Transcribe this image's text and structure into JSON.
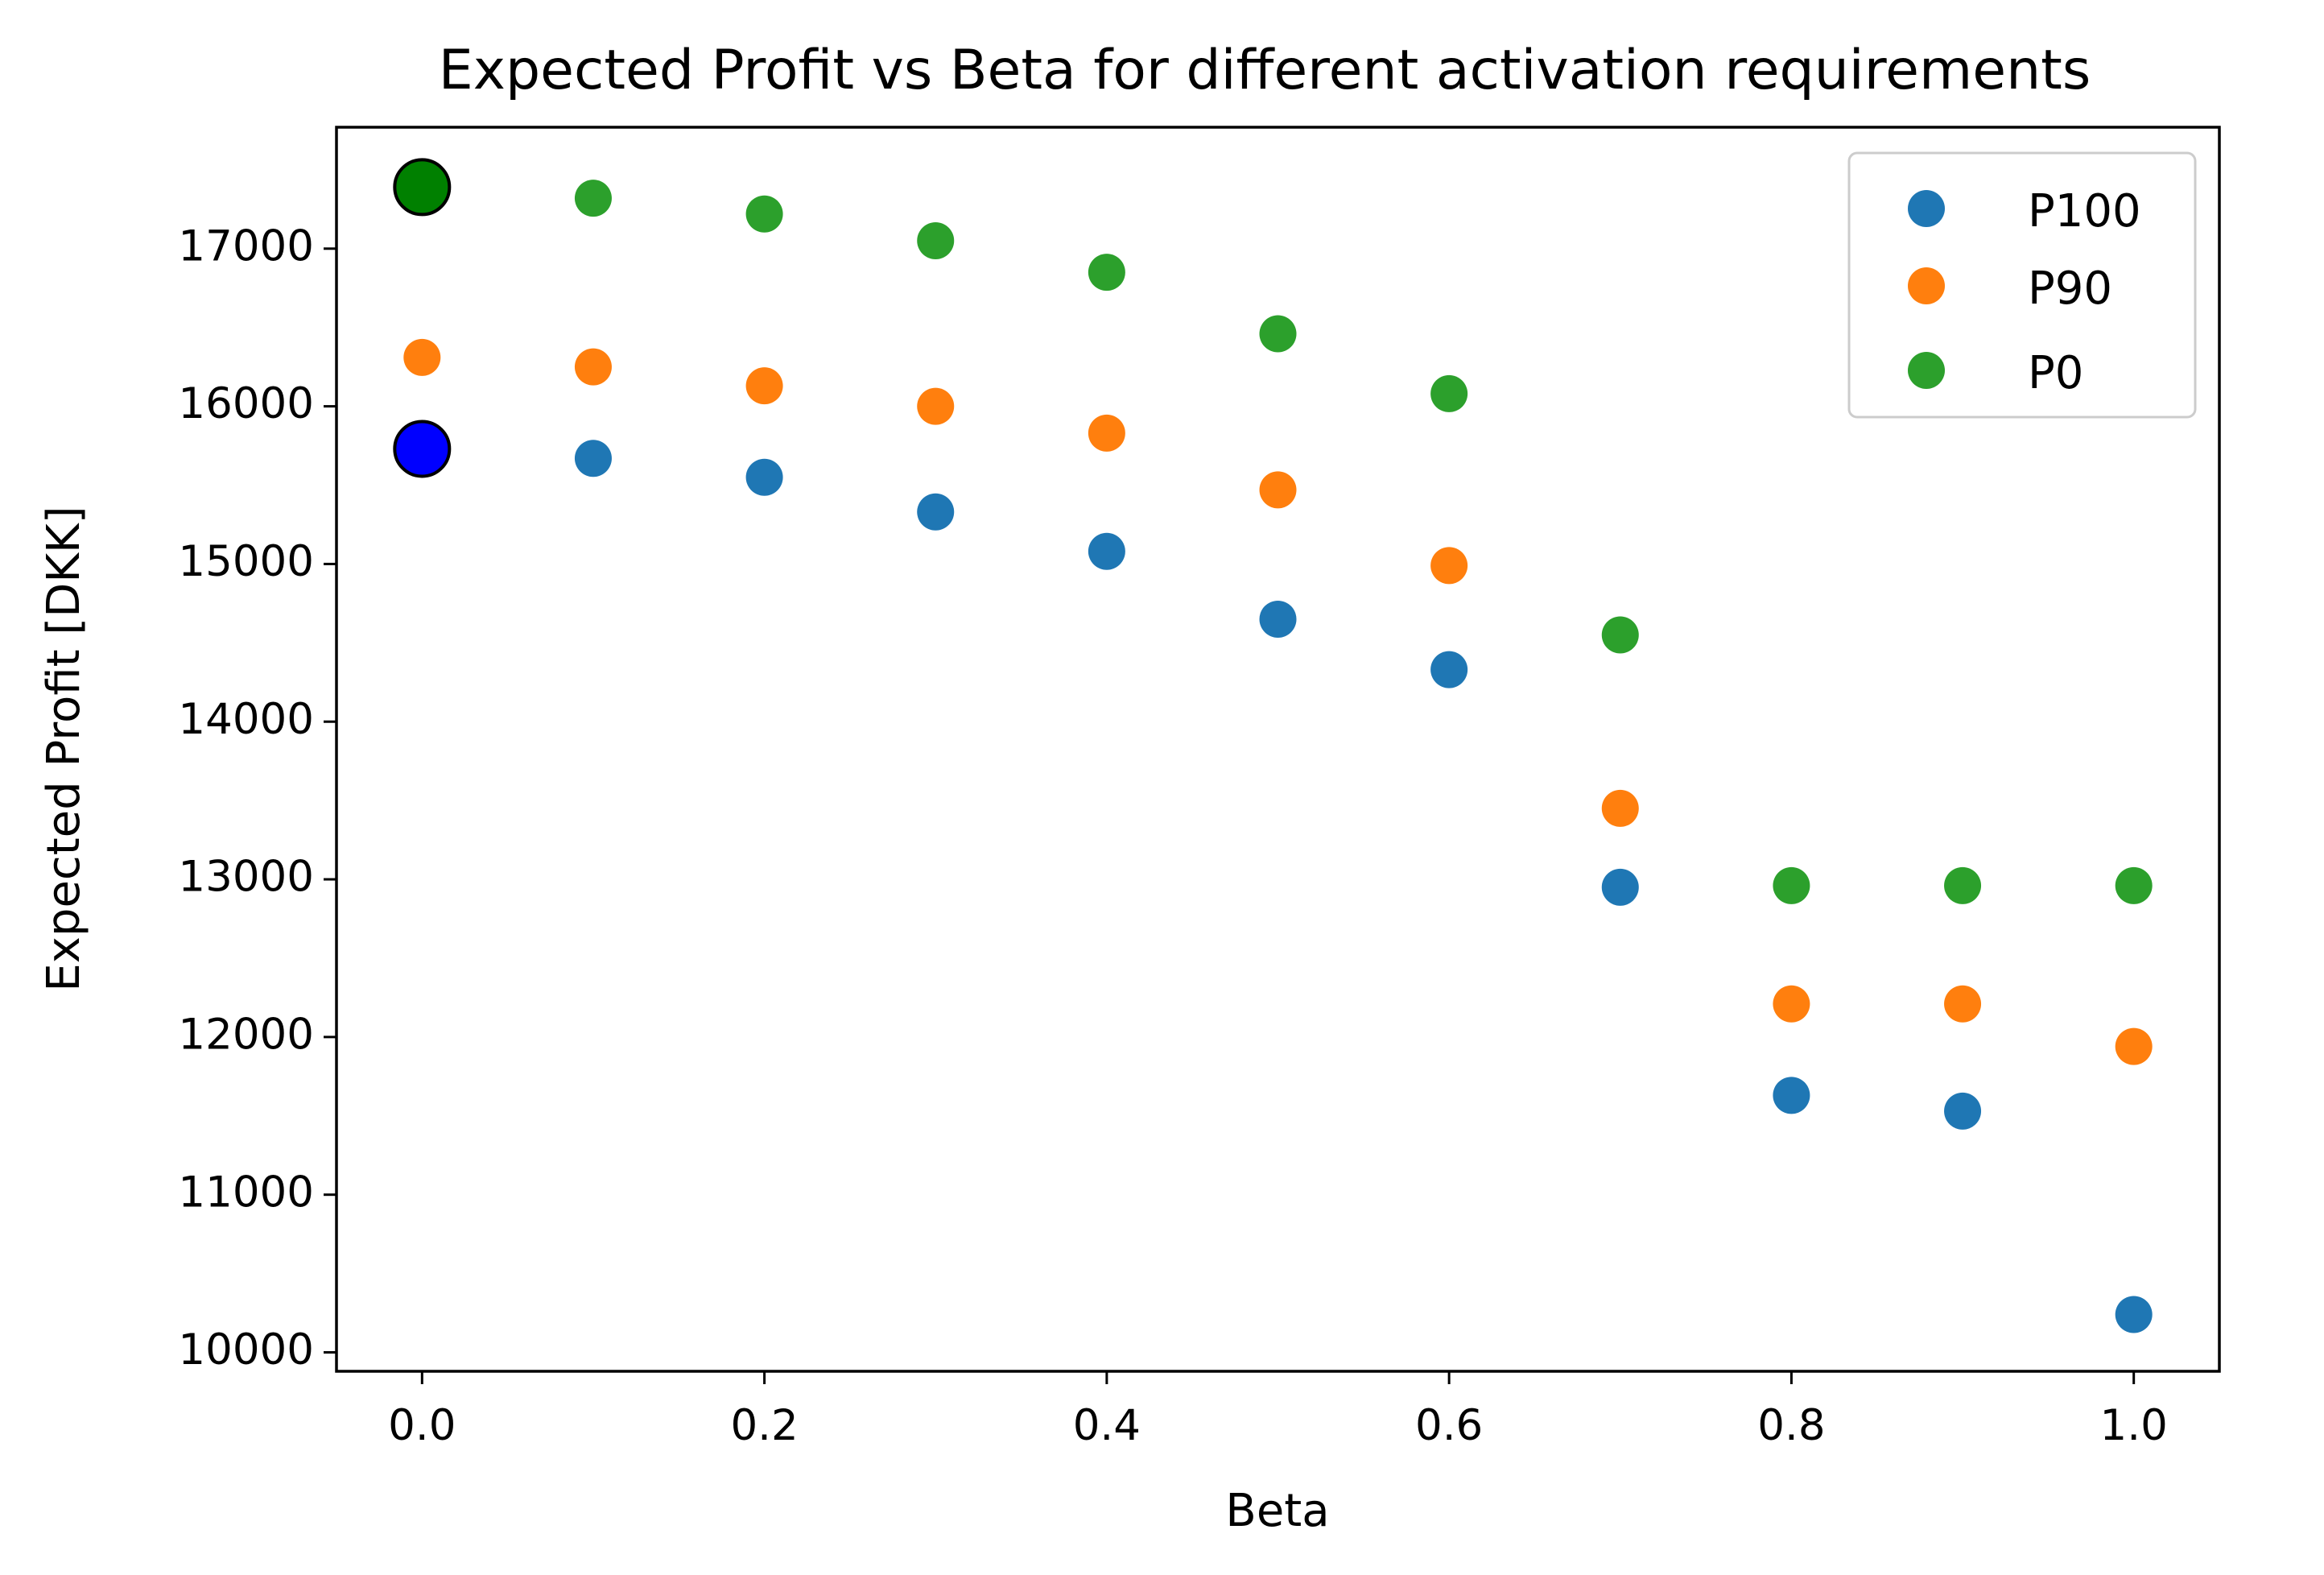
{
  "chart_data": {
    "type": "scatter",
    "title": "Expected Profit vs Beta for different activation requirements",
    "xlabel": "Beta",
    "ylabel": "Expected Profit [DKK]",
    "xlim": [
      -0.05,
      1.05
    ],
    "ylim": [
      9880,
      17770
    ],
    "x_ticks": [
      0.0,
      0.2,
      0.4,
      0.6,
      0.8,
      1.0
    ],
    "x_tick_labels": [
      "0.0",
      "0.2",
      "0.4",
      "0.6",
      "0.8",
      "1.0"
    ],
    "y_ticks": [
      10000,
      11000,
      12000,
      13000,
      14000,
      15000,
      16000,
      17000
    ],
    "y_tick_labels": [
      "10000",
      "11000",
      "12000",
      "13000",
      "14000",
      "15000",
      "16000",
      "17000"
    ],
    "legend_position": "top-right",
    "series": [
      {
        "name": "P100",
        "color": "#1f77b4",
        "x": [
          0.0,
          0.1,
          0.2,
          0.3,
          0.4,
          0.5,
          0.6,
          0.7,
          0.8,
          0.9,
          1.0
        ],
        "y": [
          15730,
          15670,
          15550,
          15330,
          15080,
          14650,
          14330,
          12950,
          11630,
          11530,
          10240
        ]
      },
      {
        "name": "P90",
        "color": "#ff7f0e",
        "x": [
          0.0,
          0.1,
          0.2,
          0.3,
          0.4,
          0.5,
          0.6,
          0.7,
          0.8,
          0.9,
          1.0
        ],
        "y": [
          16310,
          16250,
          16130,
          16000,
          15830,
          15470,
          14990,
          13450,
          12210,
          12210,
          11940
        ]
      },
      {
        "name": "P0",
        "color": "#2ca02c",
        "x": [
          0.0,
          0.1,
          0.2,
          0.3,
          0.4,
          0.5,
          0.6,
          0.7,
          0.8,
          0.9,
          1.0
        ],
        "y": [
          17390,
          17320,
          17220,
          17050,
          16850,
          16460,
          16080,
          14550,
          12960,
          12960,
          12960
        ]
      }
    ],
    "highlights": [
      {
        "x": 0.0,
        "y": 17390,
        "color": "#008000",
        "edge": "#000000"
      },
      {
        "x": 0.0,
        "y": 15730,
        "color": "#0000ff",
        "edge": "#000000"
      }
    ]
  }
}
